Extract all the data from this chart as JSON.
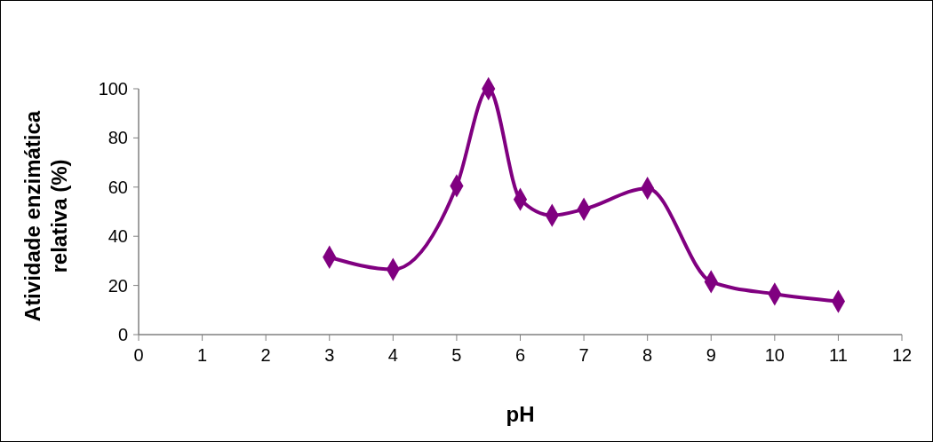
{
  "chart_data": {
    "type": "line",
    "xlabel": "pH",
    "ylabel": "Atividade enzimática relativa (%)",
    "series": [
      {
        "color": "#800080",
        "x": [
          3,
          4,
          5,
          5.5,
          6,
          6.5,
          7,
          8,
          9,
          10,
          11
        ],
        "values": [
          31.5,
          26.5,
          60.5,
          100,
          55,
          48.5,
          51,
          59.5,
          21.5,
          16.5,
          13.5
        ]
      }
    ],
    "xlim": [
      0,
      12
    ],
    "xticks": [
      0,
      1,
      2,
      3,
      4,
      5,
      6,
      7,
      8,
      9,
      10,
      11,
      12
    ],
    "ylim": [
      0,
      100
    ],
    "yticks": [
      0,
      20,
      40,
      60,
      80,
      100
    ],
    "marker": "diamond",
    "line_style": "solid",
    "grid": false
  }
}
